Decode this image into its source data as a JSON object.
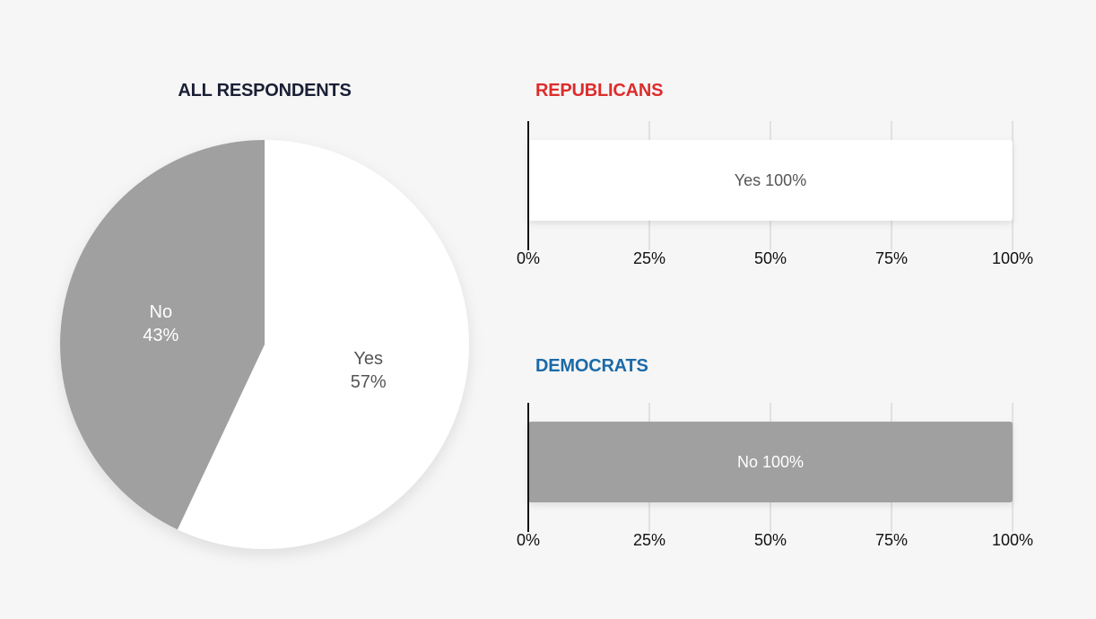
{
  "colors": {
    "yes": "#ffffff",
    "no": "#a0a0a0",
    "pie_title": "#1a1f36",
    "republicans": "#dd2c2c",
    "democrats": "#1b6aa8",
    "gridline": "#cccccc",
    "axis": "#111111"
  },
  "chart_data": [
    {
      "type": "pie",
      "title": "ALL RESPONDENTS",
      "slices": [
        {
          "label": "Yes",
          "value": 57,
          "display": "57%",
          "color": "#ffffff",
          "text_color": "#555555"
        },
        {
          "label": "No",
          "value": 43,
          "display": "43%",
          "color": "#a0a0a0",
          "text_color": "#ffffff"
        }
      ]
    },
    {
      "type": "bar",
      "orientation": "horizontal",
      "title": "REPUBLICANS",
      "title_color": "#dd2c2c",
      "xlim": [
        0,
        100
      ],
      "ticks": [
        "0%",
        "25%",
        "50%",
        "75%",
        "100%"
      ],
      "grid": true,
      "bars": [
        {
          "label": "Yes 100%",
          "value": 100,
          "color": "#ffffff",
          "text_color": "#555555"
        }
      ]
    },
    {
      "type": "bar",
      "orientation": "horizontal",
      "title": "DEMOCRATS",
      "title_color": "#1b6aa8",
      "xlim": [
        0,
        100
      ],
      "ticks": [
        "0%",
        "25%",
        "50%",
        "75%",
        "100%"
      ],
      "grid": true,
      "bars": [
        {
          "label": "No 100%",
          "value": 100,
          "color": "#a0a0a0",
          "text_color": "#ffffff"
        }
      ]
    }
  ]
}
